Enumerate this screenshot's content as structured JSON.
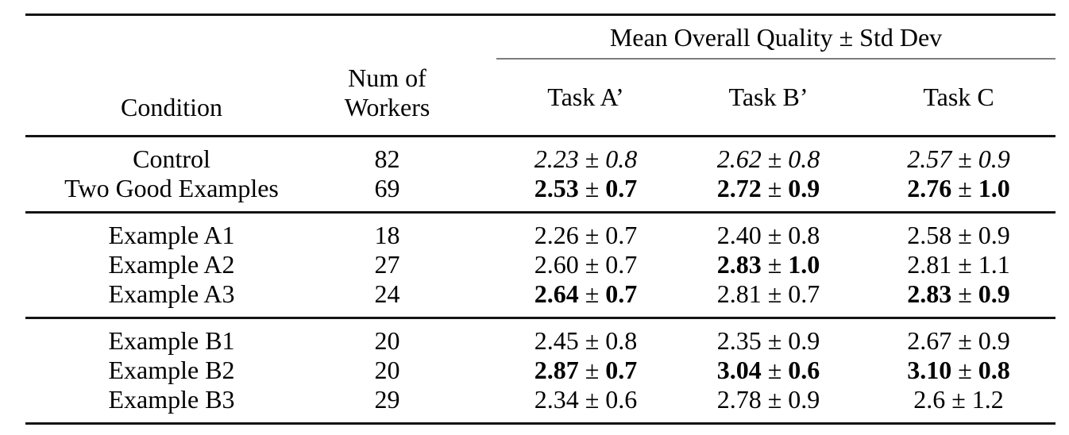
{
  "table": {
    "span_header": "Mean Overall Quality ± Std Dev",
    "pm": "±",
    "columns": {
      "condition": "Condition",
      "workers_line1": "Num of",
      "workers_line2": "Workers",
      "tasks": [
        "Task A’",
        "Task B’",
        "Task C"
      ]
    },
    "groups": [
      {
        "rows": [
          {
            "condition": "Control",
            "workers": "82",
            "values": [
              {
                "mean": "2.23",
                "std": "0.8",
                "style": "italic"
              },
              {
                "mean": "2.62",
                "std": "0.8",
                "style": "italic"
              },
              {
                "mean": "2.57",
                "std": "0.9",
                "style": "italic"
              }
            ]
          },
          {
            "condition": "Two Good Examples",
            "workers": "69",
            "values": [
              {
                "mean": "2.53",
                "std": "0.7",
                "style": "bold"
              },
              {
                "mean": "2.72",
                "std": "0.9",
                "style": "bold"
              },
              {
                "mean": "2.76",
                "std": "1.0",
                "style": "bold"
              }
            ]
          }
        ]
      },
      {
        "rows": [
          {
            "condition": "Example A1",
            "workers": "18",
            "values": [
              {
                "mean": "2.26",
                "std": "0.7",
                "style": "normal"
              },
              {
                "mean": "2.40",
                "std": "0.8",
                "style": "normal"
              },
              {
                "mean": "2.58",
                "std": "0.9",
                "style": "normal"
              }
            ]
          },
          {
            "condition": "Example A2",
            "workers": "27",
            "values": [
              {
                "mean": "2.60",
                "std": "0.7",
                "style": "normal"
              },
              {
                "mean": "2.83",
                "std": "1.0",
                "style": "bold"
              },
              {
                "mean": "2.81",
                "std": "1.1",
                "style": "normal"
              }
            ]
          },
          {
            "condition": "Example A3",
            "workers": "24",
            "values": [
              {
                "mean": "2.64",
                "std": "0.7",
                "style": "bold"
              },
              {
                "mean": "2.81",
                "std": "0.7",
                "style": "normal"
              },
              {
                "mean": "2.83",
                "std": "0.9",
                "style": "bold"
              }
            ]
          }
        ]
      },
      {
        "rows": [
          {
            "condition": "Example B1",
            "workers": "20",
            "values": [
              {
                "mean": "2.45",
                "std": "0.8",
                "style": "normal"
              },
              {
                "mean": "2.35",
                "std": "0.9",
                "style": "normal"
              },
              {
                "mean": "2.67",
                "std": "0.9",
                "style": "normal"
              }
            ]
          },
          {
            "condition": "Example B2",
            "workers": "20",
            "values": [
              {
                "mean": "2.87",
                "std": "0.7",
                "style": "bold"
              },
              {
                "mean": "3.04",
                "std": "0.6",
                "style": "bold"
              },
              {
                "mean": "3.10",
                "std": "0.8",
                "style": "bold"
              }
            ]
          },
          {
            "condition": "Example B3",
            "workers": "29",
            "values": [
              {
                "mean": "2.34",
                "std": "0.6",
                "style": "normal"
              },
              {
                "mean": "2.78",
                "std": "0.9",
                "style": "normal"
              },
              {
                "mean": "2.6",
                "std": "1.2",
                "style": "normal"
              }
            ]
          }
        ]
      }
    ]
  }
}
